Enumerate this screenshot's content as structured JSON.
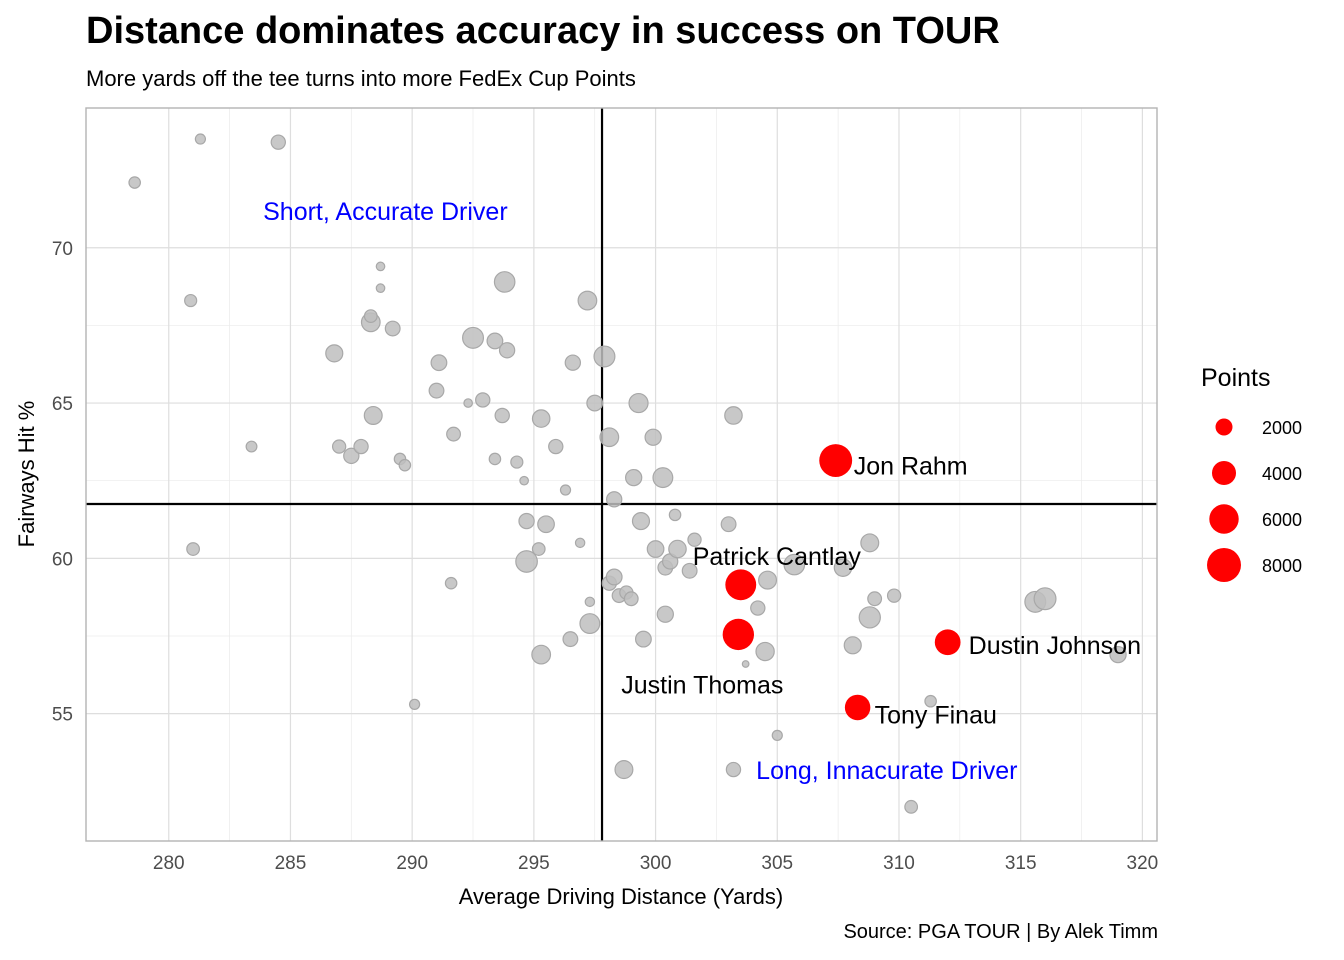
{
  "title": "Distance dominates accuracy in success on TOUR",
  "subtitle": "More yards off the tee turns into more FedEx Cup Points",
  "caption": "Source: PGA TOUR | By Alek Timm",
  "chart_data": {
    "type": "scatter",
    "xlabel": "Average Driving Distance (Yards)",
    "ylabel": "Fairways Hit %",
    "xlim": [
      276.6,
      320.6
    ],
    "ylim": [
      50.9,
      74.5
    ],
    "xticks": [
      280,
      285,
      290,
      295,
      300,
      305,
      310,
      315,
      320
    ],
    "yticks": [
      55,
      60,
      65,
      70
    ],
    "grid": true,
    "reference_lines": {
      "vertical_x": 297.8,
      "horizontal_y": 61.75
    },
    "point_color": "#bebebe",
    "highlight_color": "#ff0000",
    "legend": {
      "title": "Points",
      "placement": "right",
      "entries": [
        {
          "label": "2000",
          "value": 2000
        },
        {
          "label": "4000",
          "value": 4000
        },
        {
          "label": "6000",
          "value": 6000
        },
        {
          "label": "8000",
          "value": 8000
        }
      ]
    },
    "quadrant_labels": [
      {
        "text": "Short, Accurate Driver",
        "x": 288.9,
        "y": 70.9
      },
      {
        "text": "Long, Innacurate Driver",
        "x": 309.5,
        "y": 52.9
      }
    ],
    "highlighted": [
      {
        "name": "Jon Rahm",
        "x": 307.4,
        "y": 63.15,
        "points": 7500
      },
      {
        "name": "Patrick Cantlay",
        "x": 303.5,
        "y": 59.15,
        "points": 6600
      },
      {
        "name": "Justin Thomas",
        "x": 303.4,
        "y": 57.55,
        "points": 6800
      },
      {
        "name": "Dustin Johnson",
        "x": 312.0,
        "y": 57.3,
        "points": 4600
      },
      {
        "name": "Tony Finau",
        "x": 308.3,
        "y": 55.2,
        "points": 4500
      }
    ],
    "points": [
      {
        "x": 278.6,
        "y": 72.1,
        "points": 900
      },
      {
        "x": 281.3,
        "y": 73.5,
        "points": 700
      },
      {
        "x": 284.5,
        "y": 73.4,
        "points": 1400
      },
      {
        "x": 280.9,
        "y": 68.3,
        "points": 1000
      },
      {
        "x": 281.0,
        "y": 60.3,
        "points": 1100
      },
      {
        "x": 283.4,
        "y": 63.6,
        "points": 800
      },
      {
        "x": 286.8,
        "y": 66.6,
        "points": 2000
      },
      {
        "x": 287.0,
        "y": 63.6,
        "points": 1200
      },
      {
        "x": 287.5,
        "y": 63.3,
        "points": 1600
      },
      {
        "x": 287.9,
        "y": 63.6,
        "points": 1400
      },
      {
        "x": 288.3,
        "y": 67.6,
        "points": 2400
      },
      {
        "x": 288.3,
        "y": 67.8,
        "points": 1100
      },
      {
        "x": 288.4,
        "y": 64.6,
        "points": 2200
      },
      {
        "x": 288.7,
        "y": 69.4,
        "points": 500
      },
      {
        "x": 288.7,
        "y": 68.7,
        "points": 500
      },
      {
        "x": 289.2,
        "y": 67.4,
        "points": 1500
      },
      {
        "x": 289.5,
        "y": 63.2,
        "points": 900
      },
      {
        "x": 289.7,
        "y": 63.0,
        "points": 900
      },
      {
        "x": 290.1,
        "y": 55.3,
        "points": 700
      },
      {
        "x": 291.0,
        "y": 65.4,
        "points": 1500
      },
      {
        "x": 291.1,
        "y": 66.3,
        "points": 1700
      },
      {
        "x": 291.6,
        "y": 59.2,
        "points": 900
      },
      {
        "x": 291.7,
        "y": 64.0,
        "points": 1300
      },
      {
        "x": 292.3,
        "y": 65.0,
        "points": 500
      },
      {
        "x": 292.5,
        "y": 67.1,
        "points": 3000
      },
      {
        "x": 292.9,
        "y": 65.1,
        "points": 1400
      },
      {
        "x": 293.4,
        "y": 67.0,
        "points": 1700
      },
      {
        "x": 293.4,
        "y": 63.2,
        "points": 900
      },
      {
        "x": 293.7,
        "y": 64.6,
        "points": 1400
      },
      {
        "x": 293.8,
        "y": 68.9,
        "points": 2900
      },
      {
        "x": 293.9,
        "y": 66.7,
        "points": 1600
      },
      {
        "x": 294.3,
        "y": 63.1,
        "points": 1000
      },
      {
        "x": 294.6,
        "y": 62.5,
        "points": 500
      },
      {
        "x": 294.7,
        "y": 61.2,
        "points": 1600
      },
      {
        "x": 294.7,
        "y": 59.9,
        "points": 3200
      },
      {
        "x": 295.2,
        "y": 60.3,
        "points": 1100
      },
      {
        "x": 295.3,
        "y": 56.9,
        "points": 2400
      },
      {
        "x": 295.3,
        "y": 64.5,
        "points": 2100
      },
      {
        "x": 295.5,
        "y": 61.1,
        "points": 1900
      },
      {
        "x": 295.9,
        "y": 63.6,
        "points": 1400
      },
      {
        "x": 296.3,
        "y": 62.2,
        "points": 700
      },
      {
        "x": 296.5,
        "y": 57.4,
        "points": 1500
      },
      {
        "x": 296.6,
        "y": 66.3,
        "points": 1600
      },
      {
        "x": 296.9,
        "y": 60.5,
        "points": 600
      },
      {
        "x": 297.2,
        "y": 68.3,
        "points": 2400
      },
      {
        "x": 297.3,
        "y": 57.9,
        "points": 2700
      },
      {
        "x": 297.3,
        "y": 58.6,
        "points": 600
      },
      {
        "x": 297.5,
        "y": 65.0,
        "points": 1700
      },
      {
        "x": 297.9,
        "y": 66.5,
        "points": 3000
      },
      {
        "x": 298.1,
        "y": 63.9,
        "points": 2400
      },
      {
        "x": 298.1,
        "y": 59.2,
        "points": 1400
      },
      {
        "x": 298.3,
        "y": 61.9,
        "points": 1600
      },
      {
        "x": 298.3,
        "y": 59.4,
        "points": 1700
      },
      {
        "x": 298.5,
        "y": 58.8,
        "points": 1300
      },
      {
        "x": 298.7,
        "y": 53.2,
        "points": 2200
      },
      {
        "x": 298.8,
        "y": 58.9,
        "points": 1200
      },
      {
        "x": 299.0,
        "y": 58.7,
        "points": 1300
      },
      {
        "x": 299.1,
        "y": 62.6,
        "points": 1800
      },
      {
        "x": 299.3,
        "y": 65.0,
        "points": 2500
      },
      {
        "x": 299.4,
        "y": 61.2,
        "points": 2000
      },
      {
        "x": 299.5,
        "y": 57.4,
        "points": 1700
      },
      {
        "x": 299.9,
        "y": 63.9,
        "points": 1800
      },
      {
        "x": 300.0,
        "y": 60.3,
        "points": 1900
      },
      {
        "x": 300.3,
        "y": 62.6,
        "points": 2700
      },
      {
        "x": 300.4,
        "y": 58.2,
        "points": 1800
      },
      {
        "x": 300.4,
        "y": 59.7,
        "points": 1500
      },
      {
        "x": 300.6,
        "y": 59.9,
        "points": 1600
      },
      {
        "x": 300.8,
        "y": 61.4,
        "points": 900
      },
      {
        "x": 300.9,
        "y": 60.3,
        "points": 2100
      },
      {
        "x": 301.4,
        "y": 59.6,
        "points": 1500
      },
      {
        "x": 301.6,
        "y": 60.6,
        "points": 1200
      },
      {
        "x": 303.0,
        "y": 61.1,
        "points": 1500
      },
      {
        "x": 303.2,
        "y": 53.2,
        "points": 1400
      },
      {
        "x": 303.2,
        "y": 64.6,
        "points": 2100
      },
      {
        "x": 303.7,
        "y": 56.6,
        "points": 300
      },
      {
        "x": 304.2,
        "y": 58.4,
        "points": 1400
      },
      {
        "x": 304.5,
        "y": 57.0,
        "points": 2300
      },
      {
        "x": 304.6,
        "y": 59.3,
        "points": 2200
      },
      {
        "x": 305.0,
        "y": 54.3,
        "points": 700
      },
      {
        "x": 305.7,
        "y": 59.8,
        "points": 2900
      },
      {
        "x": 307.7,
        "y": 59.7,
        "points": 2100
      },
      {
        "x": 308.1,
        "y": 57.2,
        "points": 2000
      },
      {
        "x": 308.8,
        "y": 60.5,
        "points": 2200
      },
      {
        "x": 308.8,
        "y": 58.1,
        "points": 3100
      },
      {
        "x": 309.0,
        "y": 58.7,
        "points": 1300
      },
      {
        "x": 309.8,
        "y": 58.8,
        "points": 1200
      },
      {
        "x": 310.5,
        "y": 52.0,
        "points": 1100
      },
      {
        "x": 311.3,
        "y": 55.4,
        "points": 900
      },
      {
        "x": 315.6,
        "y": 58.6,
        "points": 3000
      },
      {
        "x": 316.0,
        "y": 58.7,
        "points": 3300
      },
      {
        "x": 319.0,
        "y": 56.9,
        "points": 1800
      }
    ]
  }
}
